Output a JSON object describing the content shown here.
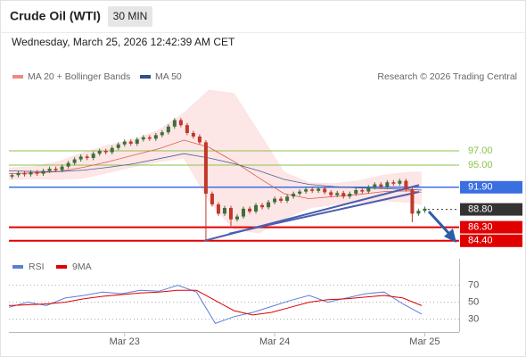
{
  "header": {
    "title": "Crude Oil (WTI)",
    "interval": "30 MIN",
    "timestamp": "Wednesday, March 25, 2026 12:42:39 AM CET"
  },
  "chart_data": {
    "type": "candlestick",
    "credit": "Research © 2026 Trading Central",
    "xlim": [
      0,
      72
    ],
    "xticks": [
      {
        "value": 18.5,
        "label": "Mar 23"
      },
      {
        "value": 42.5,
        "label": "Mar 24"
      },
      {
        "value": 66.5,
        "label": "Mar 25"
      }
    ],
    "ylim": [
      83.75,
      108.75
    ],
    "candles": {
      "up_color": "#3f6e3a",
      "down_color": "#c0392b",
      "open": [
        93.4,
        93.6,
        93.9,
        93.7,
        94.0,
        93.8,
        94.2,
        94.5,
        94.3,
        94.8,
        95.3,
        95.8,
        96.2,
        96.0,
        96.6,
        97.0,
        96.8,
        97.4,
        97.9,
        98.3,
        98.0,
        98.6,
        98.9,
        98.7,
        99.2,
        99.6,
        100.4,
        101.3,
        100.6,
        99.5,
        99.0,
        98.2,
        91.0,
        89.5,
        88.2,
        89.0,
        87.4,
        87.8,
        88.9,
        88.5,
        89.4,
        89.1,
        89.8,
        90.3,
        90.0,
        90.6,
        91.0,
        91.3,
        91.6,
        91.4,
        91.7,
        91.2,
        90.8,
        91.1,
        90.6,
        91.0,
        91.5,
        91.3,
        91.9,
        92.3,
        92.0,
        92.6,
        92.4,
        92.8,
        91.6,
        88.2,
        88.6
      ],
      "high": [
        93.9,
        94.2,
        94.2,
        94.3,
        94.3,
        94.5,
        94.8,
        94.8,
        95.1,
        95.6,
        96.1,
        96.5,
        96.5,
        96.9,
        97.3,
        97.3,
        97.7,
        98.2,
        98.6,
        98.6,
        98.9,
        99.2,
        99.2,
        99.5,
        99.9,
        100.7,
        101.6,
        101.6,
        100.9,
        99.8,
        99.3,
        98.5,
        91.3,
        89.8,
        89.3,
        89.3,
        88.1,
        89.2,
        89.2,
        89.7,
        89.7,
        90.1,
        90.6,
        90.6,
        90.9,
        91.3,
        91.6,
        91.9,
        91.9,
        92.0,
        92.0,
        91.5,
        91.4,
        91.4,
        91.3,
        91.8,
        91.8,
        92.2,
        92.6,
        92.6,
        92.9,
        92.9,
        93.1,
        93.1,
        91.9,
        88.9,
        89.2
      ],
      "low": [
        93.1,
        93.3,
        93.4,
        93.4,
        93.5,
        93.5,
        93.9,
        94.0,
        94.0,
        94.5,
        95.0,
        95.5,
        95.7,
        95.7,
        96.3,
        96.5,
        96.5,
        97.1,
        97.6,
        97.7,
        97.7,
        98.3,
        98.4,
        98.4,
        98.9,
        99.3,
        100.1,
        100.3,
        99.2,
        98.7,
        97.9,
        84.4,
        89.2,
        87.9,
        87.9,
        86.5,
        87.1,
        87.5,
        88.2,
        88.2,
        88.8,
        88.8,
        89.5,
        89.7,
        89.7,
        90.3,
        90.7,
        91.0,
        91.1,
        91.1,
        90.9,
        90.5,
        90.5,
        90.3,
        90.3,
        90.7,
        91.0,
        91.0,
        91.6,
        91.7,
        91.7,
        92.1,
        92.1,
        91.3,
        87.0,
        87.9,
        88.3
      ],
      "close": [
        93.6,
        93.9,
        93.7,
        94.0,
        93.8,
        94.2,
        94.5,
        94.3,
        94.8,
        95.3,
        95.8,
        96.2,
        96.0,
        96.6,
        97.0,
        96.8,
        97.4,
        97.9,
        98.3,
        98.0,
        98.6,
        98.9,
        98.7,
        99.2,
        99.6,
        100.4,
        101.3,
        100.6,
        99.5,
        99.0,
        98.2,
        91.0,
        89.5,
        88.2,
        89.0,
        87.4,
        87.8,
        88.9,
        88.5,
        89.4,
        89.1,
        89.8,
        90.3,
        90.0,
        90.6,
        91.0,
        91.3,
        91.6,
        91.4,
        91.7,
        91.2,
        90.8,
        91.1,
        90.6,
        91.0,
        91.5,
        91.3,
        91.9,
        92.3,
        92.0,
        92.6,
        92.4,
        92.8,
        91.6,
        88.2,
        88.6,
        88.9
      ]
    },
    "overlays": [
      {
        "name": "MA 20 + Bollinger Bands",
        "color": "#f08a80",
        "line_color": "#e05a50",
        "band_color": "#fde2e2",
        "x": [
          0,
          4,
          8,
          12,
          16,
          20,
          24,
          28,
          32,
          36,
          40,
          44,
          48,
          52,
          56,
          60,
          64,
          66
        ],
        "values": [
          93.8,
          93.9,
          94.1,
          94.7,
          95.5,
          96.4,
          97.3,
          98.5,
          97.5,
          95.5,
          93.2,
          91.0,
          90.3,
          90.6,
          90.9,
          91.3,
          91.4,
          91.2
        ],
        "upper": [
          94.6,
          94.8,
          95.5,
          96.8,
          97.8,
          98.6,
          99.9,
          102.3,
          105.5,
          105.0,
          99.5,
          94.0,
          92.5,
          92.4,
          92.8,
          93.6,
          94.0,
          94.0
        ],
        "lower": [
          93.0,
          93.1,
          93.0,
          93.2,
          94.0,
          94.8,
          95.5,
          96.0,
          90.0,
          86.0,
          85.5,
          87.5,
          89.0,
          89.5,
          89.8,
          90.0,
          89.8,
          89.5
        ]
      },
      {
        "name": "MA 50",
        "color": "#2f4f8f",
        "line_color": "#4a5f9a",
        "x": [
          0,
          4,
          8,
          12,
          16,
          20,
          24,
          28,
          32,
          36,
          40,
          44,
          48,
          52,
          56,
          60,
          64,
          66
        ],
        "values": [
          94.2,
          94.1,
          94.1,
          94.3,
          94.7,
          95.2,
          95.9,
          96.6,
          96.0,
          95.2,
          94.2,
          93.0,
          92.3,
          92.0,
          91.8,
          91.7,
          91.6,
          91.5
        ]
      }
    ],
    "levels": [
      {
        "value": 97,
        "label": "97.00",
        "color": "#8bc34a",
        "boxed": false,
        "width": 1,
        "line": "solid"
      },
      {
        "value": 95,
        "label": "95.00",
        "color": "#8bc34a",
        "boxed": false,
        "width": 1,
        "line": "solid"
      },
      {
        "value": 91.9,
        "label": "91.90",
        "color": "#3b6fe0",
        "boxed": true,
        "width": 1.5,
        "line": "solid"
      },
      {
        "value": 88.8,
        "label": "88.80",
        "color": "#333333",
        "boxed": true,
        "width": 1,
        "line": "dotted"
      },
      {
        "value": 86.3,
        "label": "86.30",
        "color": "#e00000",
        "boxed": true,
        "width": 2,
        "line": "solid"
      },
      {
        "value": 84.4,
        "label": "84.40",
        "color": "#e00000",
        "boxed": true,
        "width": 2,
        "line": "solid"
      }
    ],
    "trendlines": [
      {
        "color": "#4a5fb0",
        "x": [
          31.2,
          65.6
        ],
        "y": [
          84.4,
          92.2
        ]
      },
      {
        "color": "#4a5fb0",
        "x": [
          35.2,
          65.6
        ],
        "y": [
          85.4,
          91.25
        ]
      }
    ],
    "rsi": {
      "type": "line",
      "ylim": [
        17,
        78
      ],
      "yticks": [
        30,
        50,
        70
      ],
      "series": [
        {
          "name": "RSI",
          "color": "#5b7fd6",
          "x": [
            0,
            3,
            6,
            9,
            12,
            15,
            18,
            21,
            24,
            27,
            30,
            33,
            36,
            39,
            42,
            45,
            48,
            51,
            54,
            57,
            60,
            63,
            66
          ],
          "values": [
            44,
            50,
            46,
            55,
            58,
            62,
            60,
            64,
            63,
            70,
            62,
            25,
            33,
            38,
            45,
            52,
            58,
            50,
            55,
            60,
            62,
            48,
            36
          ]
        },
        {
          "name": "9MA",
          "color": "#e00000",
          "x": [
            0,
            3,
            6,
            9,
            12,
            15,
            18,
            21,
            24,
            27,
            30,
            33,
            36,
            39,
            42,
            45,
            48,
            51,
            54,
            57,
            60,
            63,
            66
          ],
          "values": [
            46,
            47,
            48,
            50,
            54,
            57,
            59,
            61,
            62,
            64,
            64,
            52,
            40,
            35,
            38,
            44,
            50,
            53,
            54,
            56,
            58,
            55,
            46
          ]
        }
      ]
    }
  }
}
